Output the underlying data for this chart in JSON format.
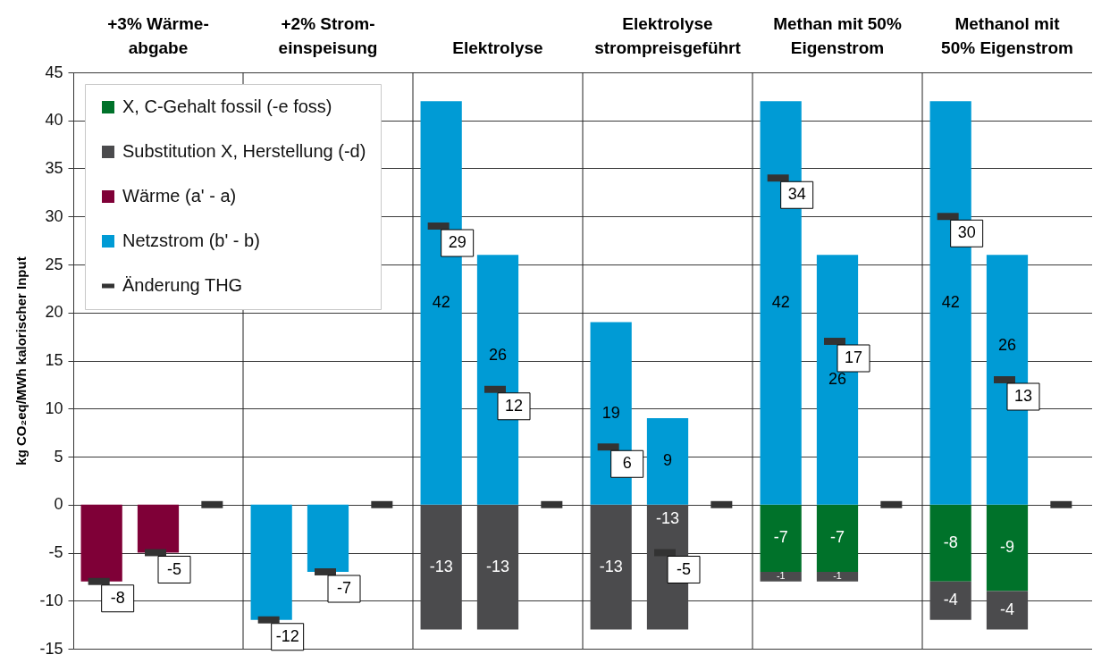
{
  "chart_data": {
    "type": "bar",
    "ylabel": "kg CO₂eq/MWh kalorischer Input",
    "categories": [
      null,
      "+3% Wärme-\nabgabe",
      null,
      null,
      "+2% Strom-\neinspeisung",
      null,
      null,
      "Elektrolyse",
      null,
      null,
      "Elektrolyse\nstrompreisgeführt",
      null,
      null,
      "Methan mit 50%\nEigenstrom",
      null,
      null,
      "Methanol mit\n50% Eigenstrom",
      null
    ],
    "stacked": true,
    "series": [
      {
        "name": "X, C-Gehalt fossil (-e foss)",
        "color": "#00722a",
        "values": [
          null,
          null,
          null,
          null,
          null,
          null,
          null,
          null,
          null,
          null,
          null,
          null,
          -7,
          -7,
          null,
          -8,
          -9,
          null
        ],
        "value_labels": [
          null,
          null,
          null,
          null,
          null,
          null,
          null,
          null,
          null,
          null,
          null,
          null,
          "-7",
          "-7",
          null,
          "-8",
          "-9",
          null
        ]
      },
      {
        "name": "Substitution X, Herstellung (-d)",
        "color": "#4b4b4d",
        "values": [
          null,
          null,
          null,
          null,
          null,
          null,
          -13,
          -13,
          null,
          -13,
          -13,
          null,
          -1,
          -1,
          null,
          -4,
          -4,
          null
        ],
        "value_labels": [
          null,
          null,
          null,
          null,
          null,
          null,
          "-13",
          "-13",
          null,
          "-13",
          "-13",
          null,
          "-1",
          "-1",
          null,
          "-4",
          "-4",
          null
        ]
      },
      {
        "name": "Wärme (a' - a)",
        "color": "#7f0037",
        "values": [
          -8,
          -5,
          null,
          null,
          null,
          null,
          null,
          null,
          null,
          null,
          null,
          null,
          null,
          null,
          null,
          null,
          null,
          null
        ]
      },
      {
        "name": "Netzstrom (b' - b)",
        "color": "#009bd5",
        "values": [
          null,
          null,
          null,
          -12,
          -7,
          null,
          42,
          26,
          null,
          19,
          9,
          null,
          42,
          26,
          null,
          42,
          26,
          null
        ],
        "value_labels": [
          null,
          null,
          null,
          null,
          null,
          null,
          "42",
          "26",
          null,
          "19",
          "9",
          null,
          "42",
          "26",
          null,
          "42",
          "26",
          null
        ]
      },
      {
        "name": "Änderung THG",
        "type": "scatter",
        "color": "#333333",
        "values": [
          -8,
          -5,
          0,
          -12,
          -7,
          0,
          29,
          12,
          0,
          6,
          -5,
          0,
          34,
          17,
          0,
          30,
          13,
          0
        ],
        "value_labels": [
          "-8",
          "-5",
          null,
          "-12",
          "-7",
          null,
          "29",
          "12",
          null,
          "6",
          "-5",
          null,
          "34",
          "17",
          null,
          "30",
          "13",
          null
        ]
      }
    ],
    "ylim": [
      -15,
      45
    ],
    "yticks": [
      -15,
      -10,
      -5,
      0,
      5,
      10,
      15,
      20,
      25,
      30,
      35,
      40,
      45
    ],
    "grid": true,
    "legend": "top left"
  }
}
